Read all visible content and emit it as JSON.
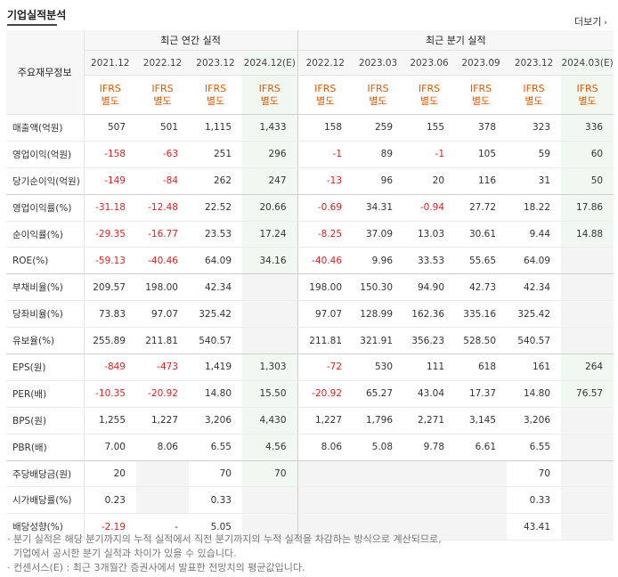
{
  "section_title": "기업실적분석",
  "more_label": "더보기",
  "more_icon": "chevron-right-icon",
  "header": {
    "label_col": "주요재무정보",
    "annual_group": "최근 연간 실적",
    "quarter_group": "최근 분기 실적",
    "periods": [
      "2021.12",
      "2022.12",
      "2023.12",
      "2024.12(E)",
      "2022.12",
      "2023.03",
      "2023.06",
      "2023.09",
      "2023.12",
      "2024.03(E)"
    ],
    "ifrs": [
      "IFRS",
      "IFRS",
      "IFRS",
      "IFRS",
      "IFRS",
      "IFRS",
      "IFRS",
      "IFRS",
      "IFRS",
      "IFRS"
    ],
    "sub": [
      "별도",
      "별도",
      "별도",
      "별도",
      "별도",
      "별도",
      "별도",
      "별도",
      "별도",
      "별도"
    ]
  },
  "rows": [
    {
      "label": "매출액(억원)",
      "values": [
        "507",
        "501",
        "1,115",
        "1,433",
        "158",
        "259",
        "155",
        "378",
        "323",
        "336"
      ]
    },
    {
      "label": "영업이익(억원)",
      "values": [
        "-158",
        "-63",
        "251",
        "296",
        "-1",
        "89",
        "-1",
        "105",
        "59",
        "60"
      ]
    },
    {
      "label": "당기순이익(억원)",
      "values": [
        "-149",
        "-84",
        "262",
        "247",
        "-13",
        "96",
        "20",
        "116",
        "31",
        "50"
      ]
    },
    {
      "label": "영업이익률(%)",
      "values": [
        "-31.18",
        "-12.48",
        "22.52",
        "20.66",
        "-0.69",
        "34.31",
        "-0.94",
        "27.72",
        "18.22",
        "17.86"
      ]
    },
    {
      "label": "순이익률(%)",
      "values": [
        "-29.35",
        "-16.77",
        "23.53",
        "17.24",
        "-8.25",
        "37.09",
        "13.03",
        "30.61",
        "9.44",
        "14.88"
      ]
    },
    {
      "label": "ROE(%)",
      "values": [
        "-59.13",
        "-40.46",
        "64.09",
        "34.16",
        "-40.46",
        "9.96",
        "33.53",
        "55.65",
        "64.09",
        ""
      ]
    },
    {
      "label": "부채비율(%)",
      "values": [
        "209.57",
        "198.00",
        "42.34",
        "",
        "198.00",
        "150.30",
        "94.90",
        "42.73",
        "42.34",
        ""
      ]
    },
    {
      "label": "당좌비율(%)",
      "values": [
        "73.83",
        "97.07",
        "325.42",
        "",
        "97.07",
        "128.99",
        "162.36",
        "335.16",
        "325.42",
        ""
      ]
    },
    {
      "label": "유보율(%)",
      "values": [
        "255.89",
        "211.81",
        "540.57",
        "",
        "211.81",
        "321.91",
        "356.23",
        "528.50",
        "540.57",
        ""
      ]
    },
    {
      "label": "EPS(원)",
      "values": [
        "-849",
        "-473",
        "1,419",
        "1,303",
        "-72",
        "530",
        "111",
        "618",
        "161",
        "264"
      ]
    },
    {
      "label": "PER(배)",
      "values": [
        "-10.35",
        "-20.92",
        "14.80",
        "15.50",
        "-20.92",
        "65.27",
        "43.04",
        "17.37",
        "14.80",
        "76.57"
      ]
    },
    {
      "label": "BPS(원)",
      "values": [
        "1,255",
        "1,227",
        "3,206",
        "4,430",
        "1,227",
        "1,796",
        "2,271",
        "3,145",
        "3,206",
        ""
      ]
    },
    {
      "label": "PBR(배)",
      "values": [
        "7.00",
        "8.06",
        "6.55",
        "4.56",
        "8.06",
        "5.08",
        "9.78",
        "6.61",
        "6.55",
        ""
      ]
    },
    {
      "label": "주당배당금(원)",
      "values": [
        "20",
        "",
        "70",
        "70",
        "",
        "",
        "",
        "",
        "70",
        ""
      ]
    },
    {
      "label": "시가배당률(%)",
      "values": [
        "0.23",
        "",
        "0.33",
        "",
        "",
        "",
        "",
        "",
        "0.33",
        ""
      ]
    },
    {
      "label": "배당성향(%)",
      "values": [
        "-2.19",
        "-",
        "5.05",
        "",
        "",
        "",
        "",
        "",
        "43.41",
        ""
      ]
    }
  ],
  "notes": [
    "분기 실적은 해당 분기까지의 누적 실적에서 직전 분기까지의 누적 실적을 차감하는 방식으로 계산되므로,",
    "기업에서 공시한 분기 실적과 차이가 있을 수 있습니다.",
    "컨센서스(E) : 최근 3개월간 증권사에서 발표한 전망치의 평균값입니다."
  ],
  "colors": {
    "negative": "#e01e1e",
    "ifrs": "#e05a00",
    "estimate_bg": "#f1f8f1"
  }
}
